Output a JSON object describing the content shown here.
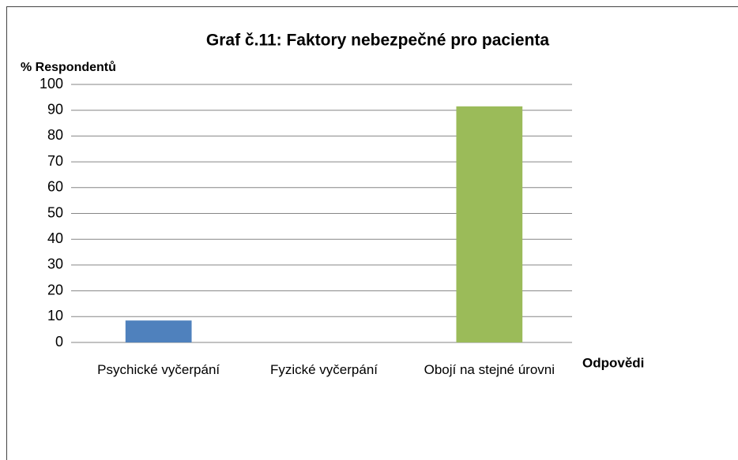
{
  "chart_data": {
    "type": "bar",
    "title": "Graf č.11: Faktory nebezpečné pro pacienta",
    "y_label": "% Respondentů",
    "x_label": "Odpovědi",
    "categories": [
      "Psychické vyčerpání",
      "Fyzické vyčerpání",
      "Obojí na stejné úrovni"
    ],
    "values": [
      8.5,
      0,
      91.5
    ],
    "colors": [
      "#4f81bd",
      null,
      "#9bbb59"
    ],
    "ylim": [
      0,
      100
    ],
    "yticks": [
      0,
      10,
      20,
      30,
      40,
      50,
      60,
      70,
      80,
      90,
      100
    ],
    "grid": true
  }
}
